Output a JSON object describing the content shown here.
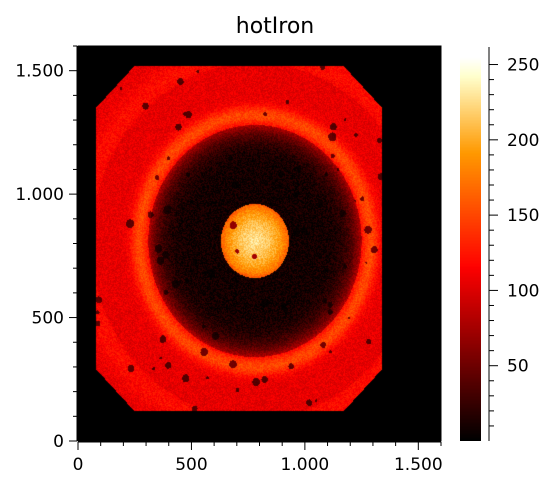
{
  "chart_data": {
    "type": "heatmap",
    "title": "hotIron",
    "xlabel": "",
    "ylabel": "",
    "colormap": "hotIron",
    "xlim": [
      0,
      1600
    ],
    "ylim": [
      0,
      1600
    ],
    "x_ticks": [
      {
        "value": 0,
        "label": "0"
      },
      {
        "value": 500,
        "label": "500"
      },
      {
        "value": 1000,
        "label": "1.000"
      },
      {
        "value": 1500,
        "label": "1.500"
      }
    ],
    "y_ticks": [
      {
        "value": 0,
        "label": "0"
      },
      {
        "value": 500,
        "label": "500"
      },
      {
        "value": 1000,
        "label": "1.000"
      },
      {
        "value": 1500,
        "label": "1.500"
      }
    ],
    "colorbar": {
      "range": [
        0,
        255
      ],
      "ticks": [
        {
          "value": 50,
          "label": "50"
        },
        {
          "value": 100,
          "label": "100"
        },
        {
          "value": 150,
          "label": "150"
        },
        {
          "value": 200,
          "label": "200"
        },
        {
          "value": 250,
          "label": "250"
        }
      ]
    },
    "image_features": {
      "sample_region": {
        "x": [
          80,
          1340
        ],
        "y": [
          120,
          1520
        ]
      },
      "inner_disk": {
        "center": [
          780,
          810
        ],
        "radius": 150,
        "value": 190
      },
      "dark_ring": {
        "inner_radius": 150,
        "outer_radius": 470,
        "value": 8
      },
      "bright_ring": {
        "radius": 510,
        "value": 150
      },
      "outer_sample_value": 105,
      "background_value": 0
    }
  }
}
